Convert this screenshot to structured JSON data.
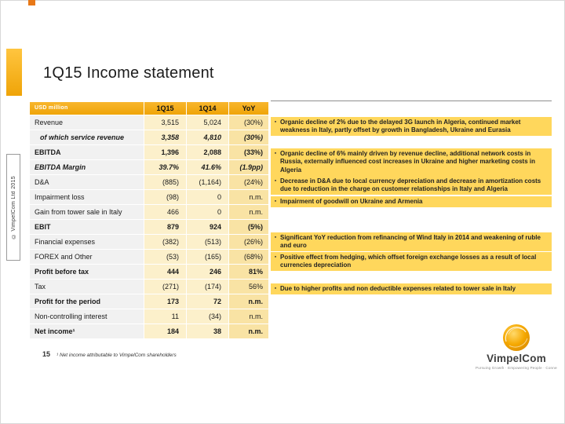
{
  "slide": {
    "title": "1Q15 Income statement",
    "page_number": "15",
    "footnote": "¹ Net income attributable to VimpelCom shareholders",
    "copyright": "© VimpelCom Ltd 2015"
  },
  "colors": {
    "gold": "#EFA408",
    "highlight": "#FFD75C"
  },
  "table": {
    "headers": {
      "label": "USD million",
      "q15": "1Q15",
      "q14": "1Q14",
      "yoy": "YoY"
    },
    "rows": [
      {
        "label": "Revenue",
        "q15": "3,515",
        "q14": "5,024",
        "yoy": "(30%)",
        "bold": false,
        "italic": false,
        "indent": false
      },
      {
        "label": "of which service revenue",
        "q15": "3,358",
        "q14": "4,810",
        "yoy": "(30%)",
        "bold": true,
        "italic": true,
        "indent": true
      },
      {
        "label": "EBITDA",
        "q15": "1,396",
        "q14": "2,088",
        "yoy": "(33%)",
        "bold": true,
        "italic": false,
        "indent": false
      },
      {
        "label": "EBITDA Margin",
        "q15": "39.7%",
        "q14": "41.6%",
        "yoy": "(1.9pp)",
        "bold": true,
        "italic": true,
        "indent": false
      },
      {
        "label": "D&A",
        "q15": "(885)",
        "q14": "(1,164)",
        "yoy": "(24%)",
        "bold": false,
        "italic": false,
        "indent": false
      },
      {
        "label": "Impairment loss",
        "q15": "(98)",
        "q14": "0",
        "yoy": "n.m.",
        "bold": false,
        "italic": false,
        "indent": false
      },
      {
        "label": "Gain from tower sale in Italy",
        "q15": "466",
        "q14": "0",
        "yoy": "n.m.",
        "bold": false,
        "italic": false,
        "indent": false
      },
      {
        "label": "EBIT",
        "q15": "879",
        "q14": "924",
        "yoy": "(5%)",
        "bold": true,
        "italic": false,
        "indent": false
      },
      {
        "label": "Financial expenses",
        "q15": "(382)",
        "q14": "(513)",
        "yoy": "(26%)",
        "bold": false,
        "italic": false,
        "indent": false
      },
      {
        "label": "FOREX and Other",
        "q15": "(53)",
        "q14": "(165)",
        "yoy": "(68%)",
        "bold": false,
        "italic": false,
        "indent": false
      },
      {
        "label": "Profit before tax",
        "q15": "444",
        "q14": "246",
        "yoy": "81%",
        "bold": true,
        "italic": false,
        "indent": false
      },
      {
        "label": "Tax",
        "q15": "(271)",
        "q14": "(174)",
        "yoy": "56%",
        "bold": false,
        "italic": false,
        "indent": false
      },
      {
        "label": "Profit for the period",
        "q15": "173",
        "q14": "72",
        "yoy": "n.m.",
        "bold": true,
        "italic": false,
        "indent": false
      },
      {
        "label": "Non-controlling interest",
        "q15": "11",
        "q14": "(34)",
        "yoy": "n.m.",
        "bold": false,
        "italic": false,
        "indent": false
      },
      {
        "label": "Net income¹",
        "q15": "184",
        "q14": "38",
        "yoy": "n.m.",
        "bold": true,
        "italic": false,
        "indent": false
      }
    ]
  },
  "annotations": [
    {
      "text": "Organic decline of 2% due to the delayed 3G launch in Algeria, continued market weakness in Italy, partly offset by growth in Bangladesh, Ukraine and Eurasia"
    },
    {
      "text": "Organic decline of 6% mainly driven by revenue decline, additional network costs in Russia, externally influenced cost increases in Ukraine and higher marketing costs in Algeria"
    },
    {
      "text": "Decrease in D&A due to local currency depreciation and decrease in amortization costs due to reduction in the charge on customer relationships in Italy and Algeria"
    },
    {
      "text": "Impairment of goodwill on Ukraine and Armenia"
    },
    {
      "text": "Significant YoY reduction from refinancing of Wind Italy in 2014 and weakening of ruble and euro"
    },
    {
      "text": "Positive effect from hedging, which offset foreign exchange losses as a result of local currencies depreciation"
    },
    {
      "text": "Due to higher profits and non deductible expenses related to tower sale in Italy"
    }
  ],
  "logo": {
    "name": "VimpelCom",
    "tagline": "Pursuing Growth  ·  Empowering People  ·  Connecting Globally"
  }
}
